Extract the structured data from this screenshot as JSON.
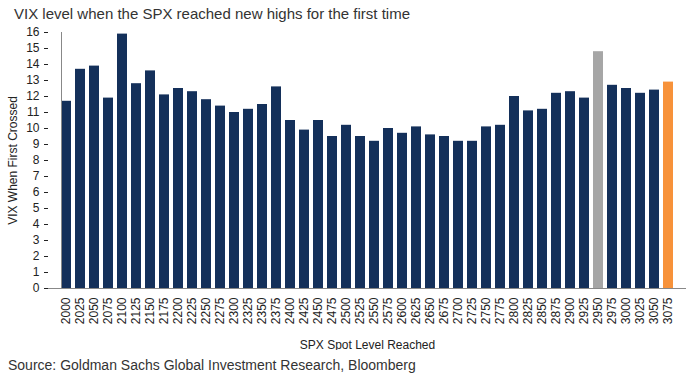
{
  "chart_data": {
    "type": "bar",
    "title": "VIX level when the SPX reached new highs for the first time",
    "x_label": "SPX Spot Level Reached",
    "y_label": "VIX When First Crossed",
    "caption": "Source: Goldman Sachs Global Investment Research, Bloomberg",
    "categories": [
      "2000",
      "2025",
      "2050",
      "2075",
      "2100",
      "2125",
      "2150",
      "2175",
      "2200",
      "2225",
      "2250",
      "2275",
      "2300",
      "2325",
      "2350",
      "2375",
      "2400",
      "2425",
      "2450",
      "2475",
      "2500",
      "2525",
      "2550",
      "2575",
      "2600",
      "2625",
      "2650",
      "2675",
      "2700",
      "2725",
      "2750",
      "2775",
      "2800",
      "2825",
      "2850",
      "2875",
      "2900",
      "2925",
      "2950",
      "2975",
      "3000",
      "3025",
      "3050",
      "3075"
    ],
    "values": [
      11.7,
      13.7,
      13.9,
      11.9,
      15.9,
      12.8,
      13.6,
      12.1,
      12.5,
      12.3,
      11.8,
      11.4,
      11.0,
      11.2,
      11.5,
      12.6,
      10.5,
      9.9,
      10.5,
      9.5,
      10.2,
      9.5,
      9.2,
      10.0,
      9.7,
      10.1,
      9.6,
      9.5,
      9.2,
      9.2,
      10.1,
      10.2,
      12.0,
      11.1,
      11.2,
      12.2,
      12.3,
      11.9,
      14.8,
      12.7,
      12.5,
      12.2,
      12.4,
      12.9
    ],
    "colors": [
      "#14305a",
      "#14305a",
      "#14305a",
      "#14305a",
      "#14305a",
      "#14305a",
      "#14305a",
      "#14305a",
      "#14305a",
      "#14305a",
      "#14305a",
      "#14305a",
      "#14305a",
      "#14305a",
      "#14305a",
      "#14305a",
      "#14305a",
      "#14305a",
      "#14305a",
      "#14305a",
      "#14305a",
      "#14305a",
      "#14305a",
      "#14305a",
      "#14305a",
      "#14305a",
      "#14305a",
      "#14305a",
      "#14305a",
      "#14305a",
      "#14305a",
      "#14305a",
      "#14305a",
      "#14305a",
      "#14305a",
      "#14305a",
      "#14305a",
      "#14305a",
      "#a6a6a6",
      "#14305a",
      "#14305a",
      "#14305a",
      "#14305a",
      "#f7923a"
    ],
    "ylim": [
      0,
      16
    ],
    "yticks": [
      0,
      1,
      2,
      3,
      4,
      5,
      6,
      7,
      8,
      9,
      10,
      11,
      12,
      13,
      14,
      15,
      16
    ],
    "grid": false
  }
}
